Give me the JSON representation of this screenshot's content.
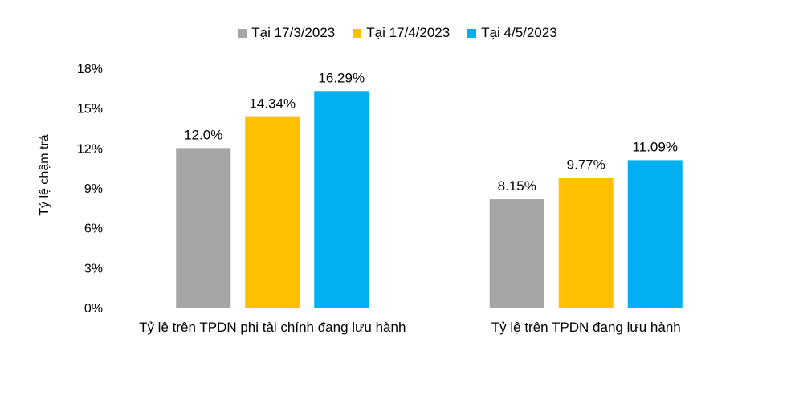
{
  "chart_data": {
    "type": "bar",
    "categories": [
      "Tỷ lệ trên TPDN phi tài chính đang lưu hành",
      "Tỷ lệ trên TPDN đang lưu hành"
    ],
    "series": [
      {
        "name": "Tại 17/3/2023",
        "values": [
          12.0,
          8.15
        ],
        "labels": [
          "12.0%",
          "8.15%"
        ],
        "color": "#A6A6A6"
      },
      {
        "name": "Tại 17/4/2023",
        "values": [
          14.34,
          9.77
        ],
        "labels": [
          "14.34%",
          "9.77%"
        ],
        "color": "#FFC000"
      },
      {
        "name": "Tại 4/5/2023",
        "values": [
          16.29,
          11.09
        ],
        "labels": [
          "16.29%",
          "11.09%"
        ],
        "color": "#00B0F0"
      }
    ],
    "ylabel": "Tỷ lệ chậm trả",
    "ylim": [
      0,
      18
    ],
    "yticks": [
      0,
      3,
      6,
      9,
      12,
      15,
      18
    ],
    "ytick_labels": [
      "0%",
      "3%",
      "6%",
      "9%",
      "12%",
      "15%",
      "18%"
    ],
    "grid": false,
    "legend_position": "top"
  }
}
